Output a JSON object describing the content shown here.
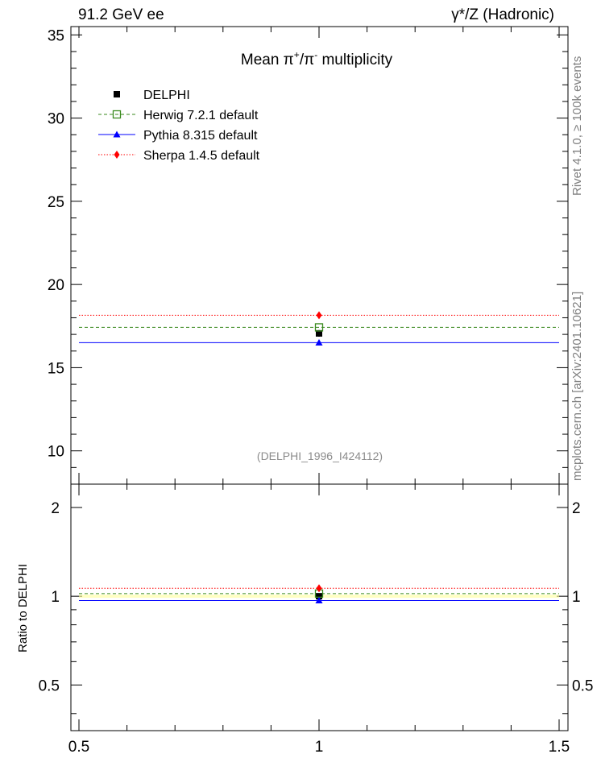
{
  "header": {
    "left": "91.2 GeV ee",
    "right": "γ*/Z (Hadronic)"
  },
  "side": {
    "rivet": "Rivet 4.1.0, ≥ 100k events",
    "mcplots": "mcplots.cern.ch [arXiv:2401.10621]"
  },
  "colors": {
    "data": "#000000",
    "herwig": "#3a8a1e",
    "pythia": "#0000ff",
    "sherpa": "#ff0000",
    "analysis_tag": "#8c8c8c"
  },
  "chart_data": [
    {
      "type": "scatter",
      "panel": "main",
      "title": "Mean π⁺/π⁻ multiplicity",
      "title_parts": {
        "prefix": "Mean π",
        "sup1": "+",
        "mid": "/π",
        "sup2": "-",
        "suffix": " multiplicity"
      },
      "xlim": [
        0.5,
        1.5
      ],
      "ylim": [
        8,
        35.5
      ],
      "yticks": [
        10,
        15,
        20,
        25,
        30,
        35
      ],
      "ytick_labels": [
        "10",
        "15",
        "20",
        "25",
        "30",
        "35"
      ],
      "analysis_tag": "(DELPHI_1996_I424112)",
      "legend": [
        {
          "label": "DELPHI",
          "marker": "filled-square",
          "color": "#000000"
        },
        {
          "label": "Herwig 7.2.1 default",
          "marker": "open-square",
          "line": "dashed",
          "color": "#3a8a1e"
        },
        {
          "label": "Pythia 8.315 default",
          "marker": "triangle",
          "line": "solid",
          "color": "#0000ff"
        },
        {
          "label": "Sherpa 1.4.5 default",
          "marker": "diamond",
          "line": "dotted",
          "color": "#ff0000"
        }
      ],
      "series": [
        {
          "name": "DELPHI",
          "x": [
            1.0
          ],
          "y": [
            17.06
          ],
          "yerr": [
            0.2
          ]
        },
        {
          "name": "Herwig 7.2.1 default",
          "x": [
            1.0
          ],
          "y": [
            17.42
          ]
        },
        {
          "name": "Pythia 8.315 default",
          "x": [
            1.0
          ],
          "y": [
            16.5
          ]
        },
        {
          "name": "Sherpa 1.4.5 default",
          "x": [
            1.0
          ],
          "y": [
            18.15
          ]
        }
      ]
    },
    {
      "type": "scatter",
      "panel": "ratio",
      "ylabel": "Ratio to DELPHI",
      "xlim": [
        0.5,
        1.5
      ],
      "ylim": [
        0.35,
        2.4
      ],
      "yscale": "log",
      "xticks": [
        0.5,
        1,
        1.5
      ],
      "xtick_labels": [
        "0.5",
        "1",
        "1.5"
      ],
      "yticks": [
        0.5,
        1,
        2
      ],
      "ytick_labels": [
        "0.5",
        "1",
        "2"
      ],
      "series": [
        {
          "name": "DELPHI",
          "x": [
            1.0
          ],
          "y": [
            1.0
          ],
          "yerr": [
            0.012
          ]
        },
        {
          "name": "Herwig 7.2.1 default",
          "x": [
            1.0
          ],
          "y": [
            1.021
          ]
        },
        {
          "name": "Pythia 8.315 default",
          "x": [
            1.0
          ],
          "y": [
            0.967
          ]
        },
        {
          "name": "Sherpa 1.4.5 default",
          "x": [
            1.0
          ],
          "y": [
            1.064
          ]
        }
      ]
    }
  ]
}
